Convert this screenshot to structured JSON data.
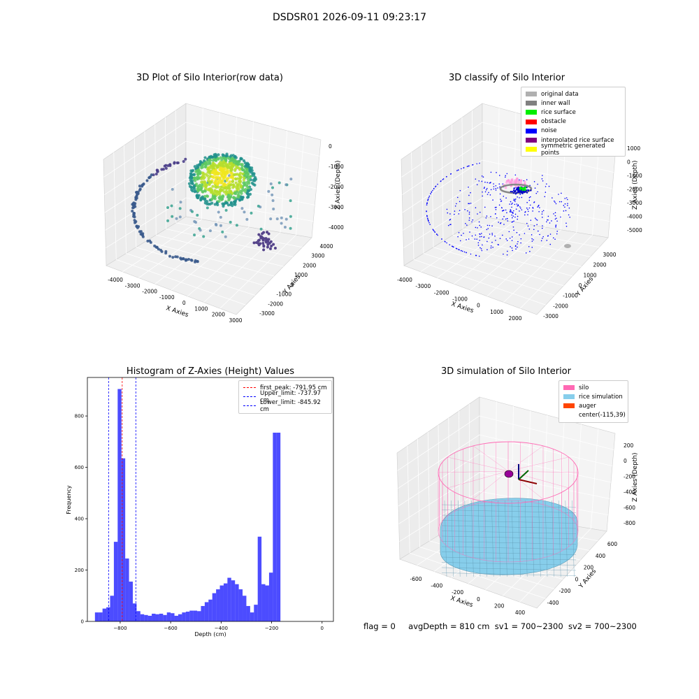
{
  "suptitle": "DSDSR01 2026-09-11 09:23:17",
  "panels": {
    "raw": {
      "title": "3D Plot of Silo Interior(row data)",
      "xlabel": "X Axies",
      "ylabel": "Y Axies",
      "zlabel": "Z Axies (Depth)",
      "xticks": [
        "-4000",
        "-3000",
        "-2000",
        "-1000",
        "0",
        "1000",
        "2000",
        "3000"
      ],
      "yticks": [
        "-3000",
        "-2000",
        "-1000",
        "0",
        "1000",
        "2000",
        "3000",
        "4000"
      ],
      "zticks": [
        "0",
        "-1000",
        "-2000",
        "-3000",
        "-4000"
      ]
    },
    "classify": {
      "title": "3D classify of Silo Interior",
      "xlabel": "X Axies",
      "ylabel": "Y Axies",
      "zlabel": "Z Axies (Depth)",
      "xticks": [
        "-4000",
        "-3000",
        "-2000",
        "-1000",
        "0",
        "1000",
        "2000"
      ],
      "yticks": [
        "-3000",
        "-2000",
        "-1000",
        "0",
        "1000",
        "2000",
        "3000"
      ],
      "zticks": [
        "1000",
        "0",
        "-1000",
        "-2000",
        "-3000",
        "-4000",
        "-5000"
      ],
      "legend": [
        {
          "label": "original data",
          "color": "#b0b0b0"
        },
        {
          "label": "inner wall",
          "color": "#808080"
        },
        {
          "label": "rice surface",
          "color": "#00ee00"
        },
        {
          "label": "obstacle",
          "color": "#ff0000"
        },
        {
          "label": "noise",
          "color": "#0000ff"
        },
        {
          "label": "interpolated rice surface",
          "color": "#800080"
        },
        {
          "label": "symmetric generated points",
          "color": "#ffff00"
        }
      ]
    },
    "simulation": {
      "title": "3D simulation of Silo Interior",
      "xlabel": "X Axies",
      "ylabel": "Y Axies",
      "zlabel": "Z Axies (Depth)",
      "xticks": [
        "-600",
        "-400",
        "-200",
        "0",
        "200",
        "400"
      ],
      "yticks": [
        "-400",
        "-200",
        "0",
        "200",
        "400",
        "600"
      ],
      "zticks": [
        "200",
        "0",
        "-200",
        "-400",
        "-600",
        "-800"
      ],
      "legend": [
        {
          "label": "silo",
          "color": "#ff69b4"
        },
        {
          "label": "rice simulation",
          "color": "#87ceeb"
        },
        {
          "label": "auger",
          "color": "#ff4500"
        },
        {
          "label": "center(-115,39)",
          "color": "#ffffff"
        }
      ]
    }
  },
  "status": {
    "flag": "flag = 0",
    "avg_depth": "avgDepth = 810 cm",
    "sv1": "sv1 = 700~2300",
    "sv2": "sv2 = 700~2300"
  },
  "chart_data": [
    {
      "type": "scatter",
      "title": "3D Plot of Silo Interior(row data)",
      "xlabel": "X Axies",
      "ylabel": "Y Axies",
      "zlabel": "Z Axies (Depth)",
      "xlim": [
        -4500,
        3000
      ],
      "ylim": [
        -3500,
        4000
      ],
      "zlim": [
        -4500,
        0
      ]
    },
    {
      "type": "scatter",
      "title": "3D classify of Silo Interior",
      "xlabel": "X Axies",
      "ylabel": "Y Axies",
      "zlabel": "Z Axies (Depth)",
      "xlim": [
        -4500,
        2500
      ],
      "ylim": [
        -3500,
        3500
      ],
      "zlim": [
        -5500,
        1000
      ],
      "legend_position": "top-right",
      "series": [
        "original data",
        "inner wall",
        "rice surface",
        "obstacle",
        "noise",
        "interpolated rice surface",
        "symmetric generated points"
      ]
    },
    {
      "type": "bar",
      "title": "Histogram of Z-Axies (Height) Values",
      "xlabel": "Depth (cm)",
      "ylabel": "Frequency",
      "xlim": [
        -930,
        45
      ],
      "ylim": [
        0,
        950
      ],
      "xticks": [
        -800,
        -600,
        -400,
        -200,
        0
      ],
      "yticks": [
        0,
        200,
        400,
        600,
        800
      ],
      "bin_width": 15,
      "bins_start": [
        -900,
        -885,
        -870,
        -855,
        -840,
        -825,
        -810,
        -795,
        -780,
        -765,
        -750,
        -735,
        -720,
        -705,
        -690,
        -675,
        -660,
        -645,
        -630,
        -615,
        -600,
        -585,
        -570,
        -555,
        -540,
        -525,
        -510,
        -495,
        -480,
        -465,
        -450,
        -435,
        -420,
        -405,
        -390,
        -375,
        -360,
        -345,
        -330,
        -315,
        -300,
        -285,
        -270,
        -255,
        -240,
        -225,
        -210,
        -195,
        -180,
        -165,
        -150,
        -135,
        -120,
        -105,
        -90,
        -75,
        -60,
        -45,
        -30,
        -15
      ],
      "values": [
        35,
        35,
        50,
        55,
        100,
        310,
        905,
        635,
        245,
        155,
        70,
        40,
        28,
        25,
        22,
        30,
        28,
        30,
        25,
        35,
        32,
        22,
        28,
        35,
        38,
        42,
        42,
        40,
        60,
        75,
        85,
        110,
        125,
        140,
        148,
        170,
        160,
        145,
        125,
        100,
        60,
        35,
        65,
        330,
        145,
        140,
        190,
        735,
        735,
        0,
        0,
        0,
        0,
        0,
        0,
        0,
        0,
        0,
        0,
        0
      ],
      "vlines": [
        {
          "label": "first_peak: -791.95 cm",
          "x": -791.95,
          "color": "#ff0000"
        },
        {
          "label": "Upper_limit: -737.97 cm",
          "x": -737.97,
          "color": "#0000ff"
        },
        {
          "label": "Lower_limit: -845.92 cm",
          "x": -845.92,
          "color": "#0000ff"
        }
      ],
      "legend_position": "top-right"
    },
    {
      "type": "surface",
      "title": "3D simulation of Silo Interior",
      "xlabel": "X Axies",
      "ylabel": "Y Axies",
      "zlabel": "Z Axies (Depth)",
      "xlim": [
        -700,
        500
      ],
      "ylim": [
        -500,
        700
      ],
      "zlim": [
        -900,
        300
      ],
      "legend_position": "top-right",
      "series": [
        "silo",
        "rice simulation",
        "auger",
        "center(-115,39)"
      ]
    }
  ]
}
